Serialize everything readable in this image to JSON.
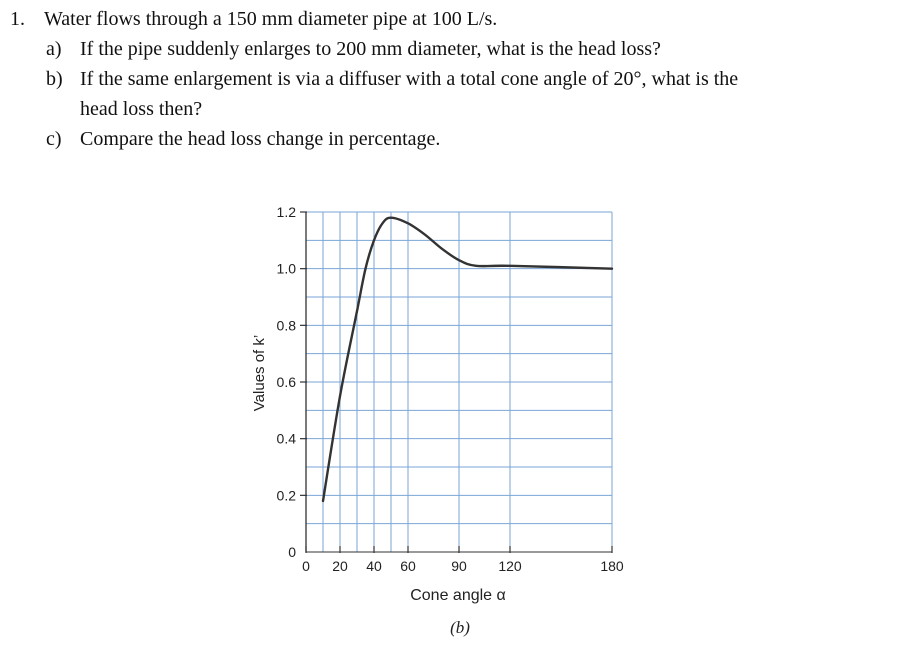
{
  "problem": {
    "number": "1.",
    "statement": "Water flows through a 150 mm diameter pipe at 100 L/s.",
    "parts": [
      {
        "label": "a)",
        "text": "If the pipe suddenly enlarges to 200 mm diameter, what is the head loss?"
      },
      {
        "label": "b)",
        "text": "If the same enlargement is via a diffuser with a total cone angle of 20°, what is the"
      },
      {
        "label": "",
        "text": "head loss then?"
      },
      {
        "label": "c)",
        "text": "Compare the head loss change in percentage."
      }
    ]
  },
  "chart_data": {
    "type": "line",
    "ylabel": "Values of k’",
    "xlabel": "Cone angle α",
    "caption": "(b)",
    "xlim": [
      0,
      180
    ],
    "ylim": [
      0,
      1.2
    ],
    "x_ticks": [
      "0",
      "20",
      "40",
      "60",
      "90",
      "120",
      "180"
    ],
    "x_tick_values": [
      0,
      20,
      40,
      60,
      90,
      120,
      180
    ],
    "y_ticks": [
      "0",
      "0.2",
      "0.4",
      "0.6",
      "0.8",
      "1.0",
      "1.2"
    ],
    "y_tick_values": [
      0,
      0.2,
      0.4,
      0.6,
      0.8,
      1.0,
      1.2
    ],
    "grid": true,
    "series": [
      {
        "values": [
          [
            10,
            0.18
          ],
          [
            20,
            0.55
          ],
          [
            30,
            0.85
          ],
          [
            35,
            1.0
          ],
          [
            40,
            1.1
          ],
          [
            45,
            1.16
          ],
          [
            50,
            1.18
          ],
          [
            60,
            1.16
          ],
          [
            70,
            1.12
          ],
          [
            80,
            1.07
          ],
          [
            90,
            1.03
          ],
          [
            100,
            1.01
          ],
          [
            120,
            1.01
          ],
          [
            180,
            1.0
          ]
        ]
      }
    ],
    "colors": {
      "line": "#333333",
      "grid": "#7aa6d6",
      "axis": "#333333"
    }
  }
}
